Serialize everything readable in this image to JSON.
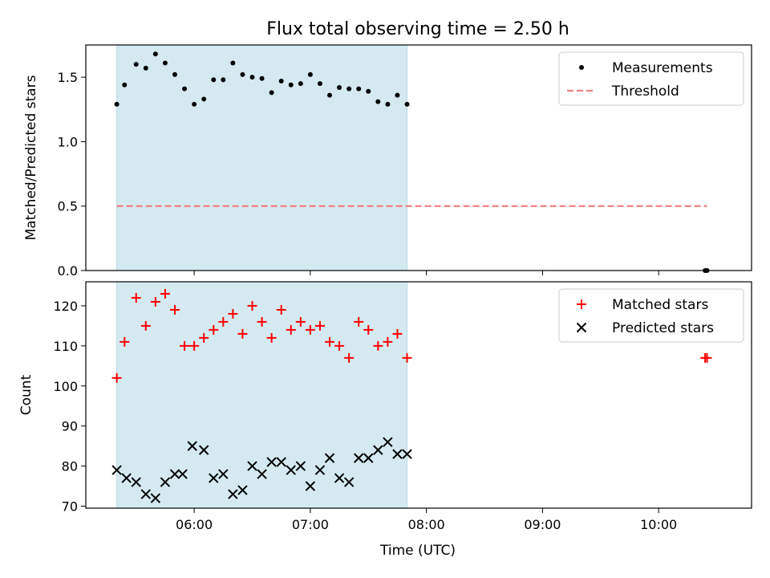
{
  "title": "Flux total observing time = 2.50 h",
  "xlabel": "Time (UTC)",
  "chart_data": [
    {
      "type": "scatter",
      "panel": "top",
      "ylabel": "Matched/Predicted stars",
      "xlim": [
        "05:04",
        "10:48"
      ],
      "ylim": [
        0,
        1.75
      ],
      "yticks": [
        0.0,
        0.5,
        1.0,
        1.5
      ],
      "ytick_labels": [
        "0.0",
        "0.5",
        "1.0",
        "1.5"
      ],
      "xtick_values": [
        "06:00",
        "07:00",
        "08:00",
        "09:00",
        "10:00"
      ],
      "xtick_labels": [],
      "shaded_span": [
        "05:20",
        "07:50"
      ],
      "shaded_color": "#d4eaf0",
      "legend": {
        "position": "top-right",
        "entries": [
          "Measurements",
          "Threshold"
        ]
      },
      "series": [
        {
          "name": "Measurements",
          "marker": "dot",
          "color": "#000000",
          "points": [
            [
              "05:20",
              1.29
            ],
            [
              "05:24",
              1.44
            ],
            [
              "05:30",
              1.6
            ],
            [
              "05:35",
              1.57
            ],
            [
              "05:40",
              1.68
            ],
            [
              "05:45",
              1.61
            ],
            [
              "05:50",
              1.52
            ],
            [
              "05:55",
              1.41
            ],
            [
              "06:00",
              1.29
            ],
            [
              "06:05",
              1.33
            ],
            [
              "06:10",
              1.48
            ],
            [
              "06:15",
              1.48
            ],
            [
              "06:20",
              1.61
            ],
            [
              "06:25",
              1.52
            ],
            [
              "06:30",
              1.5
            ],
            [
              "06:35",
              1.49
            ],
            [
              "06:40",
              1.38
            ],
            [
              "06:45",
              1.47
            ],
            [
              "06:50",
              1.44
            ],
            [
              "06:55",
              1.45
            ],
            [
              "07:00",
              1.52
            ],
            [
              "07:05",
              1.45
            ],
            [
              "07:10",
              1.36
            ],
            [
              "07:15",
              1.42
            ],
            [
              "07:20",
              1.41
            ],
            [
              "07:25",
              1.41
            ],
            [
              "07:30",
              1.39
            ],
            [
              "07:35",
              1.31
            ],
            [
              "07:40",
              1.29
            ],
            [
              "07:45",
              1.36
            ],
            [
              "07:50",
              1.29
            ],
            [
              "10:24",
              0.0
            ],
            [
              "10:25",
              0.0
            ]
          ]
        },
        {
          "name": "Threshold",
          "style": "dashed-line",
          "color": "#f08080",
          "points": [
            [
              "05:20",
              0.5
            ],
            [
              "10:25",
              0.5
            ]
          ]
        }
      ]
    },
    {
      "type": "scatter",
      "panel": "bottom",
      "ylabel": "Count",
      "xlim": [
        "05:04",
        "10:48"
      ],
      "ylim": [
        69.5,
        126
      ],
      "yticks": [
        70,
        80,
        90,
        100,
        110,
        120
      ],
      "ytick_labels": [
        "70",
        "80",
        "90",
        "100",
        "110",
        "120"
      ],
      "xtick_values": [
        "06:00",
        "07:00",
        "08:00",
        "09:00",
        "10:00"
      ],
      "xtick_labels": [
        "06:00",
        "07:00",
        "08:00",
        "09:00",
        "10:00"
      ],
      "shaded_span": [
        "05:20",
        "07:50"
      ],
      "shaded_color": "#d4eaf0",
      "legend": {
        "position": "top-right",
        "entries": [
          "Matched stars",
          "Predicted stars"
        ]
      },
      "series": [
        {
          "name": "Matched stars",
          "marker": "plus",
          "color": "#ff0000",
          "points": [
            [
              "05:20",
              102
            ],
            [
              "05:24",
              111
            ],
            [
              "05:30",
              122
            ],
            [
              "05:35",
              115
            ],
            [
              "05:40",
              121
            ],
            [
              "05:45",
              123
            ],
            [
              "05:50",
              119
            ],
            [
              "05:55",
              110
            ],
            [
              "06:00",
              110
            ],
            [
              "06:05",
              112
            ],
            [
              "06:10",
              114
            ],
            [
              "06:15",
              116
            ],
            [
              "06:20",
              118
            ],
            [
              "06:25",
              113
            ],
            [
              "06:30",
              120
            ],
            [
              "06:35",
              116
            ],
            [
              "06:40",
              112
            ],
            [
              "06:45",
              119
            ],
            [
              "06:50",
              114
            ],
            [
              "06:55",
              116
            ],
            [
              "07:00",
              114
            ],
            [
              "07:05",
              115
            ],
            [
              "07:10",
              111
            ],
            [
              "07:15",
              110
            ],
            [
              "07:20",
              107
            ],
            [
              "07:25",
              116
            ],
            [
              "07:30",
              114
            ],
            [
              "07:35",
              110
            ],
            [
              "07:40",
              111
            ],
            [
              "07:45",
              113
            ],
            [
              "07:50",
              107
            ],
            [
              "10:24",
              107
            ],
            [
              "10:25",
              107
            ]
          ]
        },
        {
          "name": "Predicted stars",
          "marker": "x",
          "color": "#000000",
          "points": [
            [
              "05:20",
              79
            ],
            [
              "05:25",
              77
            ],
            [
              "05:30",
              76
            ],
            [
              "05:35",
              73
            ],
            [
              "05:40",
              72
            ],
            [
              "05:45",
              76
            ],
            [
              "05:50",
              78
            ],
            [
              "05:54",
              78
            ],
            [
              "05:59",
              85
            ],
            [
              "06:05",
              84
            ],
            [
              "06:10",
              77
            ],
            [
              "06:15",
              78
            ],
            [
              "06:20",
              73
            ],
            [
              "06:25",
              74
            ],
            [
              "06:30",
              80
            ],
            [
              "06:35",
              78
            ],
            [
              "06:40",
              81
            ],
            [
              "06:45",
              81
            ],
            [
              "06:50",
              79
            ],
            [
              "06:55",
              80
            ],
            [
              "07:00",
              75
            ],
            [
              "07:05",
              79
            ],
            [
              "07:10",
              82
            ],
            [
              "07:15",
              77
            ],
            [
              "07:20",
              76
            ],
            [
              "07:25",
              82
            ],
            [
              "07:30",
              82
            ],
            [
              "07:35",
              84
            ],
            [
              "07:40",
              86
            ],
            [
              "07:45",
              83
            ],
            [
              "07:50",
              83
            ]
          ]
        }
      ]
    }
  ]
}
